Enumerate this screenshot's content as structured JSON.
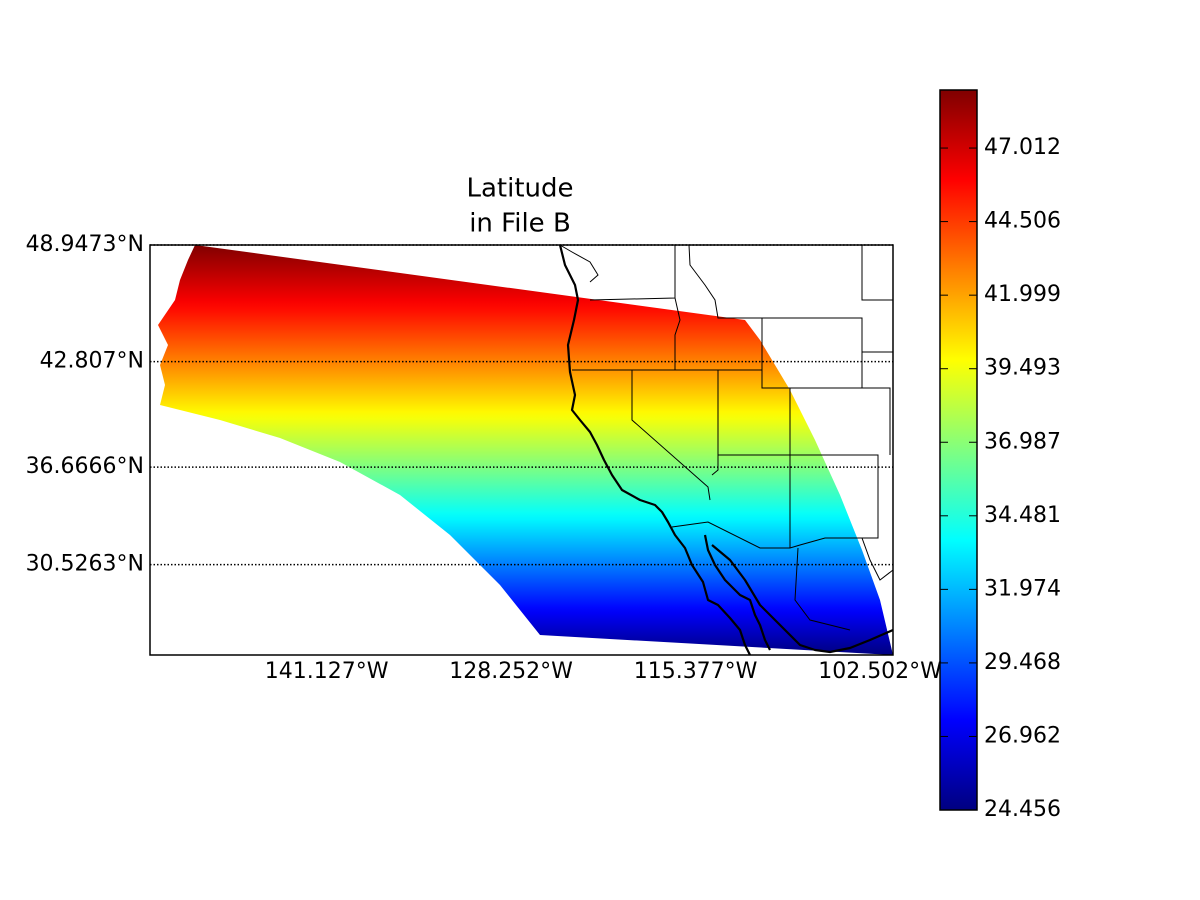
{
  "chart_data": {
    "type": "map",
    "title": [
      "Latitude",
      "in File B"
    ],
    "projection": "mercator",
    "xlim": [
      -153.45,
      -101.6
    ],
    "ylim": [
      24.456,
      48.9473
    ],
    "xticks": [
      {
        "value": -141.127,
        "label": "141.127°W"
      },
      {
        "value": -128.252,
        "label": "128.252°W"
      },
      {
        "value": -115.377,
        "label": "115.377°W"
      },
      {
        "value": -102.502,
        "label": "102.502°W"
      }
    ],
    "yticks": [
      {
        "value": 48.9473,
        "label": "48.9473°N"
      },
      {
        "value": 42.807,
        "label": "42.807°N"
      },
      {
        "value": 36.6666,
        "label": "36.6666°N"
      },
      {
        "value": 30.5263,
        "label": "30.5263°N"
      }
    ],
    "parallels": true,
    "colorbar": {
      "colormap": "jet",
      "clim": [
        24.456,
        48.99
      ],
      "ticks": [
        47.012,
        44.506,
        41.999,
        39.493,
        36.987,
        34.481,
        31.974,
        29.468,
        26.962,
        24.456
      ]
    }
  }
}
